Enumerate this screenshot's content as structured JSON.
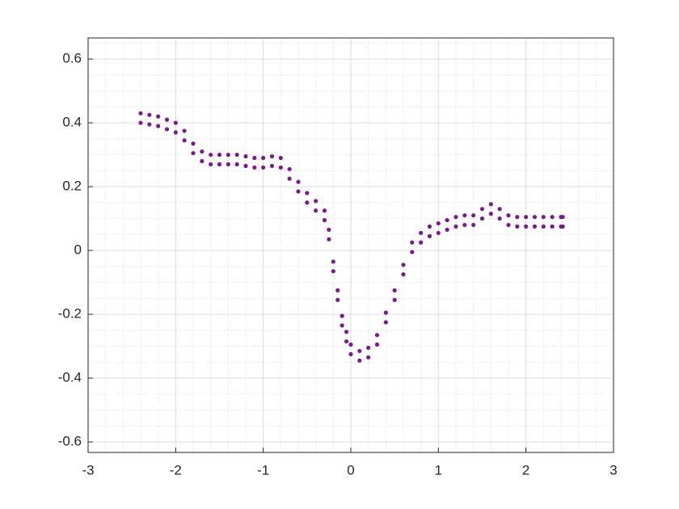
{
  "chart_data": {
    "type": "scatter",
    "xlim": [
      -3,
      3
    ],
    "ylim": [
      -0.633,
      0.666
    ],
    "xticks": [
      -3,
      -2,
      -1,
      0,
      1,
      2,
      3
    ],
    "yticks": [
      -0.6,
      -0.4,
      -0.2,
      0,
      0.2,
      0.4,
      0.6
    ],
    "xminorticks": [
      -2.8,
      -2.6,
      -2.4,
      -2.2,
      -1.8,
      -1.6,
      -1.4,
      -1.2,
      -0.8,
      -0.6,
      -0.4,
      -0.2,
      0.2,
      0.4,
      0.6,
      0.8,
      1.2,
      1.4,
      1.6,
      1.8,
      2.2,
      2.4,
      2.6,
      2.8
    ],
    "yminorticks": [
      -0.55,
      -0.5,
      -0.45,
      -0.35,
      -0.3,
      -0.25,
      -0.15,
      -0.1,
      -0.05,
      0.05,
      0.1,
      0.15,
      0.25,
      0.3,
      0.35,
      0.45,
      0.5,
      0.55,
      0.65
    ],
    "grid": true,
    "minor_grid": true,
    "series": [
      {
        "color": "#7b1a8c",
        "x": [
          -2.4,
          -2.3,
          -2.2,
          -2.1,
          -2.0,
          -1.9,
          -1.8,
          -1.7,
          -1.6,
          -1.5,
          -1.4,
          -1.3,
          -1.2,
          -1.1,
          -1.0,
          -0.9,
          -0.8,
          -0.7,
          -0.6,
          -0.5,
          -0.4,
          -0.3,
          -0.25,
          -0.2,
          -0.15,
          -0.1,
          -0.05,
          0,
          0.1,
          0.2,
          0.3,
          0.4,
          0.5,
          0.6,
          0.7,
          0.8,
          0.9,
          1.0,
          1.1,
          1.2,
          1.3,
          1.4,
          1.5,
          1.6,
          1.7,
          1.8,
          1.9,
          2.0,
          2.1,
          2.2,
          2.3,
          2.4,
          2.42
        ],
        "values": [
          0.43,
          0.425,
          0.42,
          0.41,
          0.4,
          0.375,
          0.335,
          0.31,
          0.3,
          0.3,
          0.3,
          0.3,
          0.295,
          0.29,
          0.29,
          0.295,
          0.29,
          0.255,
          0.215,
          0.18,
          0.155,
          0.125,
          0.065,
          -0.035,
          -0.125,
          -0.205,
          -0.255,
          -0.295,
          -0.315,
          -0.305,
          -0.265,
          -0.195,
          -0.125,
          -0.045,
          0.025,
          0.055,
          0.075,
          0.085,
          0.095,
          0.105,
          0.11,
          0.11,
          0.13,
          0.145,
          0.13,
          0.11,
          0.105,
          0.105,
          0.105,
          0.105,
          0.105,
          0.105,
          0.105
        ]
      },
      {
        "color": "#7b1a8c",
        "x": [
          -2.4,
          -2.3,
          -2.2,
          -2.1,
          -2.0,
          -1.9,
          -1.8,
          -1.7,
          -1.6,
          -1.5,
          -1.4,
          -1.3,
          -1.2,
          -1.1,
          -1.0,
          -0.9,
          -0.8,
          -0.7,
          -0.6,
          -0.5,
          -0.4,
          -0.3,
          -0.25,
          -0.2,
          -0.15,
          -0.1,
          -0.05,
          0,
          0.1,
          0.2,
          0.3,
          0.4,
          0.5,
          0.6,
          0.7,
          0.8,
          0.9,
          1.0,
          1.1,
          1.2,
          1.3,
          1.4,
          1.5,
          1.6,
          1.7,
          1.8,
          1.9,
          2.0,
          2.1,
          2.2,
          2.3,
          2.4,
          2.42
        ],
        "values": [
          0.4,
          0.395,
          0.39,
          0.38,
          0.37,
          0.345,
          0.305,
          0.28,
          0.27,
          0.27,
          0.27,
          0.27,
          0.265,
          0.26,
          0.26,
          0.265,
          0.26,
          0.225,
          0.185,
          0.15,
          0.125,
          0.095,
          0.035,
          -0.065,
          -0.155,
          -0.235,
          -0.285,
          -0.325,
          -0.345,
          -0.335,
          -0.295,
          -0.225,
          -0.155,
          -0.075,
          -0.005,
          0.025,
          0.045,
          0.055,
          0.065,
          0.075,
          0.08,
          0.08,
          0.1,
          0.115,
          0.1,
          0.08,
          0.075,
          0.075,
          0.075,
          0.075,
          0.075,
          0.075,
          0.075
        ]
      }
    ]
  }
}
